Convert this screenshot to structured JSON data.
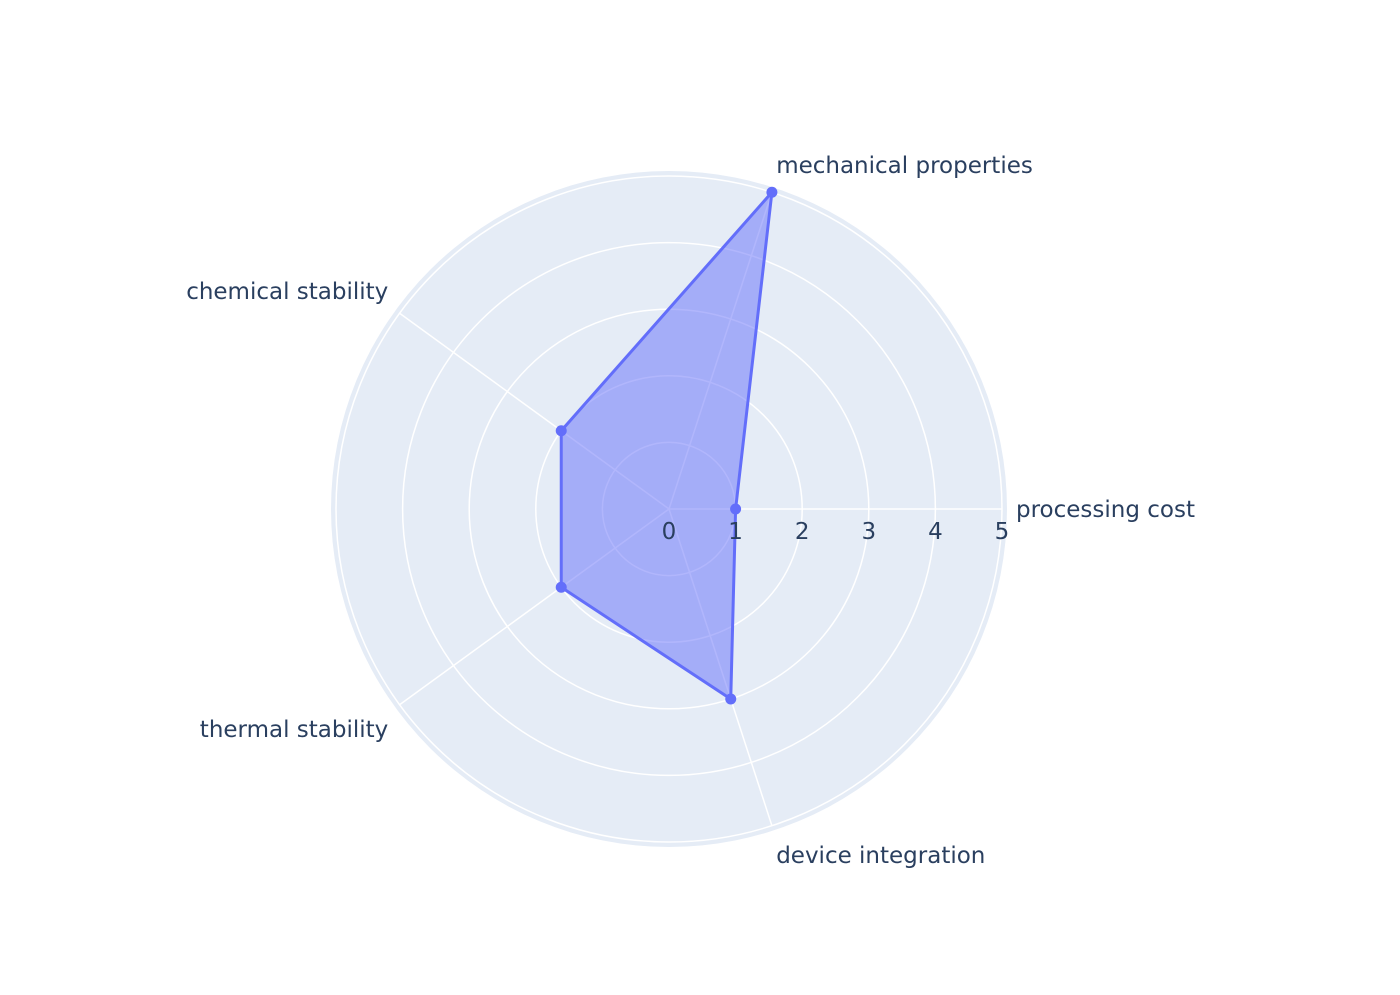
{
  "chart_data": {
    "type": "radar",
    "categories": [
      "processing cost",
      "mechanical properties",
      "chemical stability",
      "thermal stability",
      "device integration"
    ],
    "series": [
      {
        "values": [
          1,
          5,
          2,
          2,
          3
        ]
      }
    ],
    "radial_range": [
      0,
      5
    ],
    "radial_ticks": [
      "0",
      "1",
      "2",
      "3",
      "4",
      "5"
    ],
    "grid": true,
    "colors": {
      "polar_background": "#e5ecf6",
      "grid": "#ffffff",
      "line": "#636efa",
      "fill": "rgba(99,110,250,0.5)",
      "text": "#2a3f5f"
    }
  }
}
